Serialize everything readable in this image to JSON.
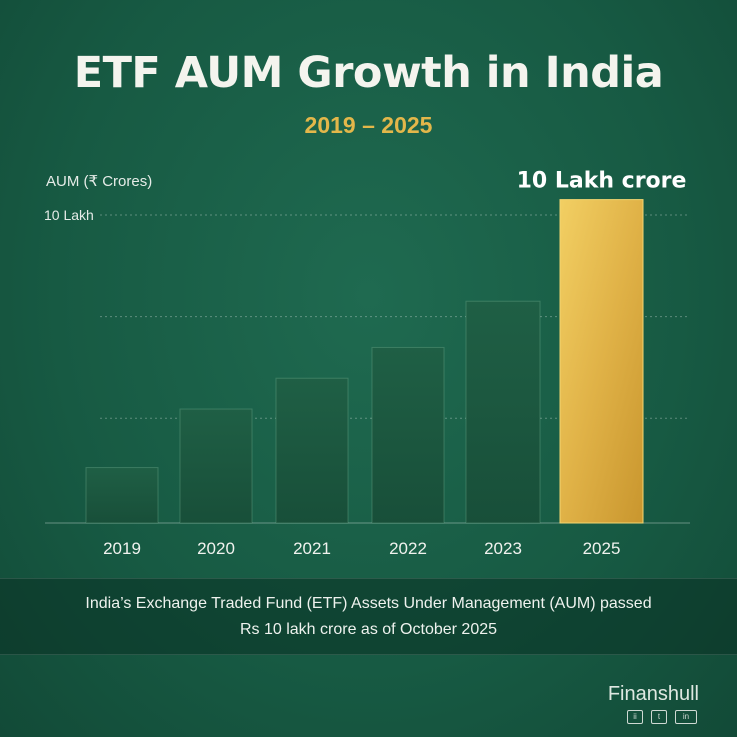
{
  "title": "ETF AUM Growth in India",
  "subtitle": "2019 – 2025",
  "caption": {
    "line1": "India’s Exchange Traded Fund (ETF) Assets Under Management (AUM) passed",
    "line2": "Rs 10 lakh crore as of October 2025"
  },
  "brand": "Finanshull",
  "social_icons": [
    "instagram-icon",
    "twitter-icon",
    "linkedin-icon"
  ],
  "colors": {
    "background": "#175a43",
    "bar": "#1c5a41",
    "highlight_bar": "#e3b74a",
    "subtitle": "#e3b74a"
  },
  "chart_data": {
    "type": "bar",
    "title": "ETF AUM Growth in India",
    "subtitle": "2019 – 2025",
    "ylabel": "AUM (₹ Crores)",
    "categories": [
      "2019",
      "2020",
      "2021",
      "2022",
      "2023",
      "2025"
    ],
    "values": [
      1.8,
      3.7,
      4.7,
      5.7,
      7.2,
      10.5
    ],
    "value_unit": "lakh crore",
    "ylim": [
      0,
      10.5
    ],
    "ytick_labels": [
      {
        "value": 10,
        "label": "10 Lakh"
      }
    ],
    "grid": true,
    "highlight": {
      "category": "2025",
      "label": "10 Lakh crore"
    }
  }
}
